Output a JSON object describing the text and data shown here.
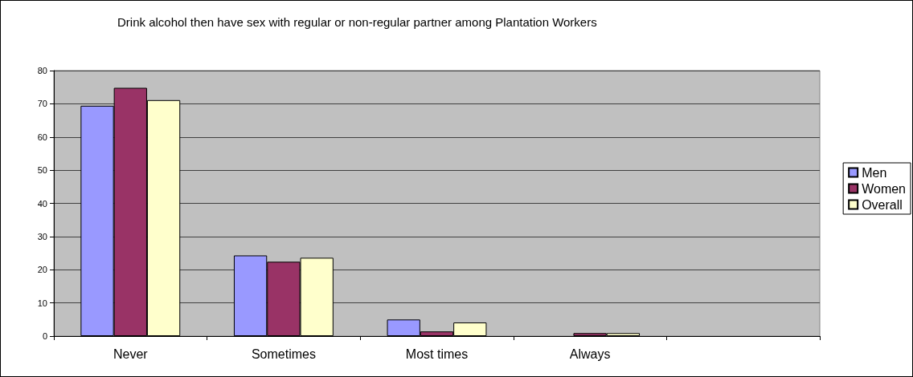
{
  "chart_data": {
    "type": "bar",
    "title": "Drink alcohol then have sex with regular or non-regular partner among Plantation Workers",
    "categories": [
      "Never",
      "Sometimes",
      "Most times",
      "Always",
      null
    ],
    "series": [
      {
        "name": "Men",
        "color": "#9999ff",
        "values": [
          69.4,
          24.3,
          5.0,
          null,
          null
        ]
      },
      {
        "name": "Women",
        "color": "#993366",
        "values": [
          74.8,
          22.4,
          1.4,
          0.9,
          null
        ]
      },
      {
        "name": "Overall",
        "color": "#ffffcc",
        "values": [
          71.1,
          23.6,
          4.1,
          0.9,
          null
        ]
      }
    ],
    "ylim": [
      0,
      80
    ],
    "yticks": [
      0,
      10,
      20,
      30,
      40,
      50,
      60,
      70,
      80
    ],
    "grid": "y",
    "legend": "right"
  }
}
